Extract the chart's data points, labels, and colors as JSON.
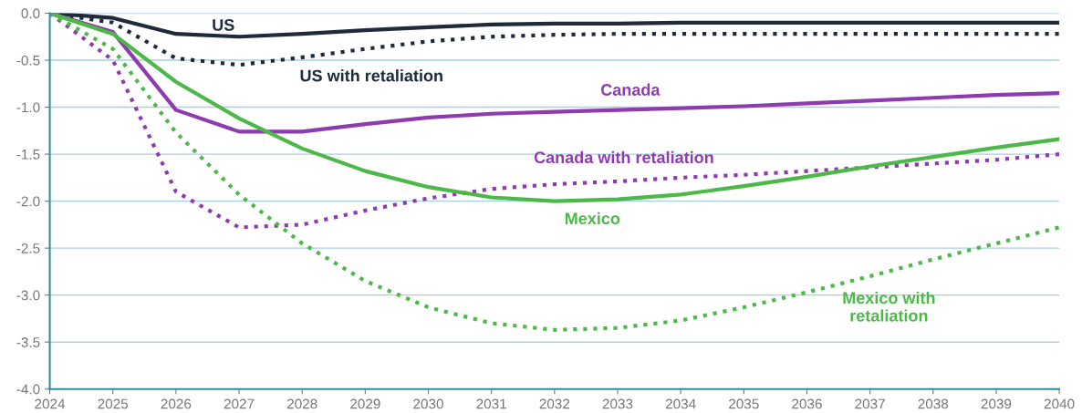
{
  "chart_data": {
    "type": "line",
    "x": [
      2024,
      2025,
      2026,
      2027,
      2028,
      2029,
      2030,
      2031,
      2032,
      2033,
      2034,
      2035,
      2036,
      2037,
      2038,
      2039,
      2040
    ],
    "series": [
      {
        "name": "US",
        "color": "#1f2a3a",
        "line_style": "solid",
        "values": [
          0,
          -0.05,
          -0.22,
          -0.25,
          -0.22,
          -0.18,
          -0.15,
          -0.12,
          -0.11,
          -0.11,
          -0.1,
          -0.1,
          -0.1,
          -0.1,
          -0.1,
          -0.1,
          -0.1
        ]
      },
      {
        "name": "US with retaliation",
        "color": "#1f2a3a",
        "line_style": "dotted",
        "values": [
          0,
          -0.1,
          -0.48,
          -0.55,
          -0.47,
          -0.38,
          -0.3,
          -0.25,
          -0.23,
          -0.22,
          -0.22,
          -0.22,
          -0.22,
          -0.22,
          -0.22,
          -0.22,
          -0.22
        ]
      },
      {
        "name": "Canada",
        "color": "#8e3bb0",
        "line_style": "solid",
        "values": [
          0,
          -0.2,
          -1.03,
          -1.26,
          -1.26,
          -1.18,
          -1.11,
          -1.07,
          -1.05,
          -1.03,
          -1.01,
          -0.99,
          -0.96,
          -0.93,
          -0.9,
          -0.87,
          -0.85
        ]
      },
      {
        "name": "Canada with retaliation",
        "color": "#8e3bb0",
        "line_style": "dotted",
        "values": [
          0,
          -0.5,
          -1.9,
          -2.28,
          -2.25,
          -2.1,
          -1.97,
          -1.87,
          -1.82,
          -1.79,
          -1.75,
          -1.72,
          -1.68,
          -1.64,
          -1.6,
          -1.56,
          -1.5
        ]
      },
      {
        "name": "Mexico",
        "color": "#4cb848",
        "line_style": "solid",
        "values": [
          0,
          -0.22,
          -0.73,
          -1.12,
          -1.44,
          -1.68,
          -1.85,
          -1.96,
          -2.0,
          -1.98,
          -1.93,
          -1.84,
          -1.74,
          -1.63,
          -1.53,
          -1.43,
          -1.34
        ]
      },
      {
        "name": "Mexico with\nretaliation",
        "color": "#4cb848",
        "line_style": "dotted",
        "values": [
          0,
          -0.38,
          -1.27,
          -1.93,
          -2.45,
          -2.85,
          -3.13,
          -3.3,
          -3.37,
          -3.35,
          -3.27,
          -3.13,
          -2.97,
          -2.8,
          -2.62,
          -2.45,
          -2.28
        ]
      }
    ],
    "xlim": [
      2024,
      2040
    ],
    "xticks": [
      2024,
      2025,
      2026,
      2027,
      2028,
      2029,
      2030,
      2031,
      2032,
      2033,
      2034,
      2035,
      2036,
      2037,
      2038,
      2039,
      2040
    ],
    "ylim": [
      -4,
      0
    ],
    "yticks": [
      {
        "value": -4,
        "label": "-4.0"
      },
      {
        "value": -3.5,
        "label": "-3.5"
      },
      {
        "value": -3,
        "label": "-3.0"
      },
      {
        "value": -2.5,
        "label": "-2.5"
      },
      {
        "value": -2,
        "label": "-2.0"
      },
      {
        "value": -1.5,
        "label": "-1.5"
      },
      {
        "value": -1,
        "label": "-1.0"
      },
      {
        "value": -0.5,
        "label": "-0.5"
      },
      {
        "value": 0,
        "label": "0.0"
      }
    ],
    "grid": "y",
    "legend": false
  }
}
